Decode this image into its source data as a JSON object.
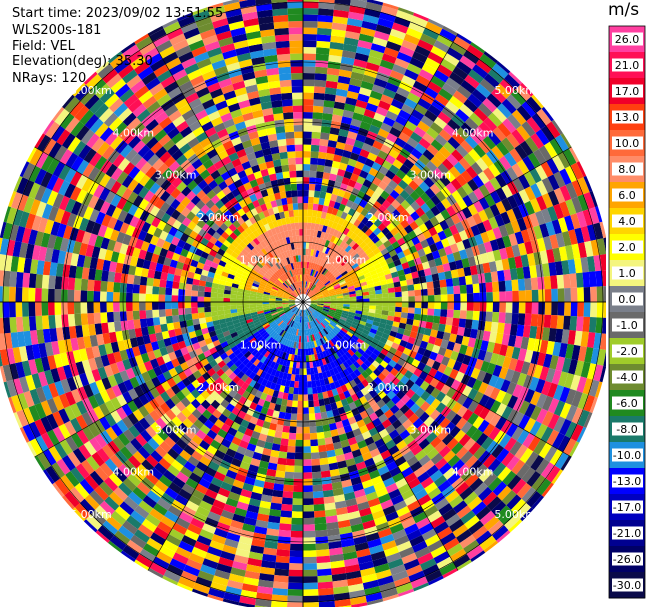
{
  "info": {
    "start_time": "Start time: 2023/09/02 13:51:55",
    "instrument": "WLS200s-181",
    "field": "Field: VEL",
    "elevation": "Elevation(deg): 35.30",
    "nrays": "NRays: 120"
  },
  "colorbar": {
    "unit": "m/s",
    "levels": [
      {
        "label": "26.0",
        "color": "#ff3fa0"
      },
      {
        "label": "21.0",
        "color": "#ff0f55"
      },
      {
        "label": "17.0",
        "color": "#f0002a"
      },
      {
        "label": "13.0",
        "color": "#ff4010"
      },
      {
        "label": "10.0",
        "color": "#ff6a3a"
      },
      {
        "label": "8.0",
        "color": "#ff8c68"
      },
      {
        "label": "6.0",
        "color": "#ffa500"
      },
      {
        "label": "4.0",
        "color": "#ffd500"
      },
      {
        "label": "2.0",
        "color": "#ffff00"
      },
      {
        "label": "1.0",
        "color": "#f4f57e"
      },
      {
        "label": "0.0",
        "color": "#7a7f8a"
      },
      {
        "label": "-1.0",
        "color": "#6a6a6a"
      },
      {
        "label": "-2.0",
        "color": "#a0cc2a"
      },
      {
        "label": "-4.0",
        "color": "#6e8c30"
      },
      {
        "label": "-6.0",
        "color": "#208a20"
      },
      {
        "label": "-8.0",
        "color": "#1a7a6a"
      },
      {
        "label": "-10.0",
        "color": "#1e90e0"
      },
      {
        "label": "-13.0",
        "color": "#0000ff"
      },
      {
        "label": "-17.0",
        "color": "#0000c0"
      },
      {
        "label": "-21.0",
        "color": "#000090"
      },
      {
        "label": "-26.0",
        "color": "#000066"
      },
      {
        "label": "-30.0",
        "color": "#0a0a4a"
      }
    ]
  },
  "chart_data": {
    "type": "heatmap",
    "projection": "polar (PPI)",
    "field": "VEL",
    "unit": "m/s",
    "nrays": 120,
    "elevation_deg": 35.3,
    "range_ring_labels": [
      "1.00km",
      "2.00km",
      "3.00km",
      "4.00km",
      "5.00km"
    ],
    "grid": true,
    "colorbar_ticks": [
      26.0,
      21.0,
      17.0,
      13.0,
      10.0,
      8.0,
      6.0,
      4.0,
      2.0,
      1.0,
      0.0,
      -1.0,
      -2.0,
      -4.0,
      -6.0,
      -8.0,
      -10.0,
      -13.0,
      -17.0,
      -21.0,
      -26.0,
      -30.0
    ]
  }
}
